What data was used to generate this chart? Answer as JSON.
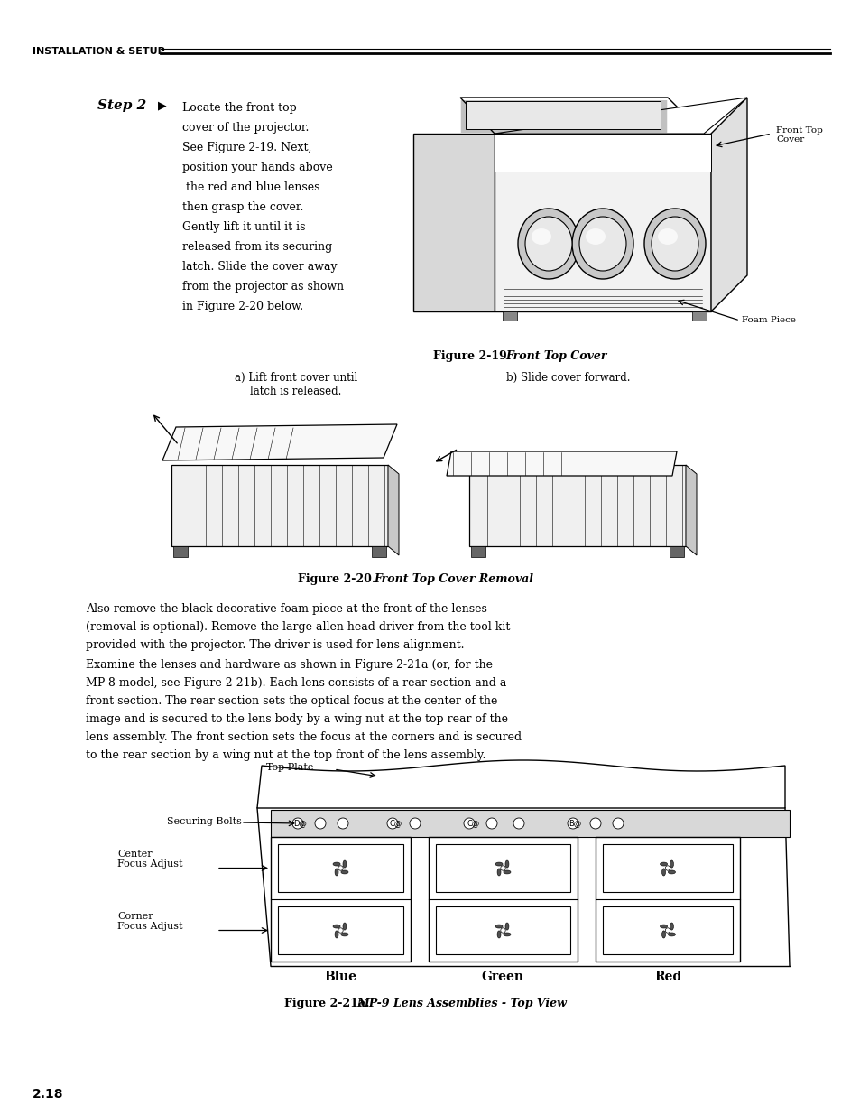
{
  "page_number": "2.18",
  "header_text": "INSTALLATION & SETUP",
  "background_color": "#ffffff",
  "text_color": "#000000",
  "step2_label": "Step 2",
  "step2_body": "Locate the front top\ncover of the projector.\nSee Figure 2-19. Next,\nposition your hands above\n the red and blue lenses\nthen grasp the cover.\nGently lift it until it is\nreleased from its securing\nlatch. Slide the cover away\nfrom the projector as shown\nin Figure 2-20 below.",
  "fig19_caption": "Figure 2-19.",
  "fig19_caption_italic": "Front Top Cover",
  "fig19_label_frontcover": "Front Top\nCover",
  "fig19_label_foampiece": "Foam Piece",
  "fig20_caption": "Figure 2-20.",
  "fig20_caption_italic": "Front Top Cover Removal",
  "fig20_label_a": "a) Lift front cover until\nlatch is released.",
  "fig20_label_b": "b) Slide cover forward.",
  "para1": "Also remove the black decorative foam piece at the front of the lenses\n(removal is optional). Remove the large allen head driver from the tool kit\nprovided with the projector. The driver is used for lens alignment.",
  "para2_lines": [
    "Examine the lenses and hardware as shown in Figure 2-21a (or, for the",
    "MP-8 model, see Figure 2-21b). Each lens consists of a rear section and a",
    "front section. The rear section sets the optical focus at the center of the",
    "image and is secured to the lens body by a wing nut at the top rear of the",
    "lens assembly. The front section sets the focus at the corners and is secured",
    "to the rear section by a wing nut at the top front of the lens assembly."
  ],
  "fig21a_label_topplate": "Top Plate",
  "fig21a_label_securing": "Securing Bolts",
  "fig21a_label_center": "Center\nFocus Adjust",
  "fig21a_label_corner": "Corner\nFocus Adjust",
  "fig21a_blue": "Blue",
  "fig21a_green": "Green",
  "fig21a_red": "Red",
  "fig21a_caption": "Figure 2-21a.",
  "fig21a_caption_italic": "MP-9 Lens Assemblies - Top View"
}
